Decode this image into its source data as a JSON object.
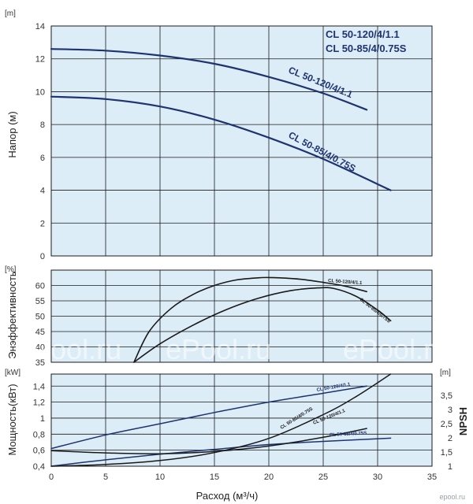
{
  "colors": {
    "plot_background": "#dcedf7",
    "grid": "#1a1a1a",
    "curve_blue": "#1e3370",
    "curve_black": "#1a1a1a"
  },
  "labels": {
    "legend_1": "CL 50-120/4/1.1",
    "legend_2": "CL 50-85/4/0.75S",
    "watermark": "ePool.ru",
    "logo": "epool.ru"
  },
  "chart_data": [
    {
      "type": "line",
      "panel": "head",
      "ylabel": "Напор (м)",
      "unit": "[m]",
      "ylim": [
        0,
        14
      ],
      "yticks": [
        "0",
        "2",
        "4",
        "6",
        "8",
        "10",
        "12",
        "14"
      ],
      "xlim": [
        0,
        35
      ],
      "grid": true,
      "legend": "top-right",
      "series": [
        {
          "name": "CL 50-120/4/1.1",
          "color": "#1e3370",
          "x": [
            0,
            5,
            10,
            15,
            20,
            25,
            29
          ],
          "y": [
            12.6,
            12.5,
            12.2,
            11.7,
            10.9,
            9.9,
            8.9
          ]
        },
        {
          "name": "CL 50-85/4/0.75S",
          "color": "#1e3370",
          "x": [
            0,
            5,
            10,
            15,
            20,
            25,
            31.2
          ],
          "y": [
            9.7,
            9.55,
            9.1,
            8.3,
            7.2,
            5.9,
            4.0
          ]
        }
      ]
    },
    {
      "type": "line",
      "panel": "efficiency",
      "ylabel": "Энэффективность",
      "unit": "[%]",
      "ylim": [
        35,
        65
      ],
      "yticks": [
        "35",
        "40",
        "45",
        "50",
        "55",
        "60"
      ],
      "xlim": [
        0,
        35
      ],
      "grid": true,
      "series": [
        {
          "name": "CL 50-120/4/1.1",
          "color": "#1a1a1a",
          "x": [
            7.6,
            9,
            11,
            13,
            15,
            17,
            19,
            20,
            21,
            23,
            25,
            27,
            29
          ],
          "y": [
            35,
            45,
            52.5,
            57,
            60,
            61.8,
            62.5,
            62.6,
            62.5,
            62,
            61,
            59.8,
            58
          ]
        },
        {
          "name": "CL 50-85/4/0.75S",
          "color": "#1a1a1a",
          "x": [
            7.6,
            10,
            13,
            16,
            19,
            22,
            24.5,
            26,
            28,
            30,
            31.2
          ],
          "y": [
            35,
            41,
            47,
            52,
            55.8,
            58.3,
            59.2,
            59,
            56.5,
            52,
            48.5
          ]
        }
      ]
    },
    {
      "type": "line",
      "panel": "power_npsh",
      "ylabel": "Мощность(кВт)",
      "unit": "[kW]",
      "ylim": [
        0.4,
        1.55
      ],
      "yticks": [
        "0,4",
        "0,6",
        "0,8",
        "1",
        "1,2",
        "1,4"
      ],
      "y2label": "NPSH",
      "y2unit": "[m]",
      "y2lim": [
        1,
        4.25
      ],
      "y2ticks": [
        "1",
        "1,5",
        "2",
        "2,5",
        "3",
        "3,5"
      ],
      "xlabel": "Расход (м³/ч)",
      "xlim": [
        0,
        35
      ],
      "xticks": [
        "0",
        "5",
        "10",
        "15",
        "20",
        "25",
        "30",
        "35"
      ],
      "grid": true,
      "series": [
        {
          "name": "CL 50-120/4/1.1",
          "axis": "left",
          "color": "#1e3370",
          "x": [
            0,
            5,
            10,
            15,
            20,
            25,
            29
          ],
          "y": [
            0.62,
            0.79,
            0.93,
            1.07,
            1.2,
            1.31,
            1.4
          ]
        },
        {
          "name": "CL 50-85/4/0.75S",
          "axis": "left",
          "color": "#1e3370",
          "x": [
            0,
            5,
            10,
            15,
            20,
            25,
            31.2
          ],
          "y": [
            0.4,
            0.48,
            0.55,
            0.61,
            0.67,
            0.71,
            0.75
          ]
        },
        {
          "name": "CL 50-120/4/1.1",
          "axis": "right",
          "color": "#1a1a1a",
          "x": [
            0,
            5,
            10,
            15,
            20,
            25,
            29
          ],
          "y": [
            1.55,
            1.47,
            1.44,
            1.52,
            1.71,
            2.02,
            2.33
          ]
        },
        {
          "name": "CL 50-85/4/0.75S",
          "axis": "right",
          "color": "#1a1a1a",
          "x": [
            0,
            5,
            10,
            15,
            20,
            25,
            28,
            31.2
          ],
          "y": [
            1.0,
            1.06,
            1.2,
            1.48,
            1.98,
            2.82,
            3.45,
            4.25
          ]
        }
      ]
    }
  ]
}
